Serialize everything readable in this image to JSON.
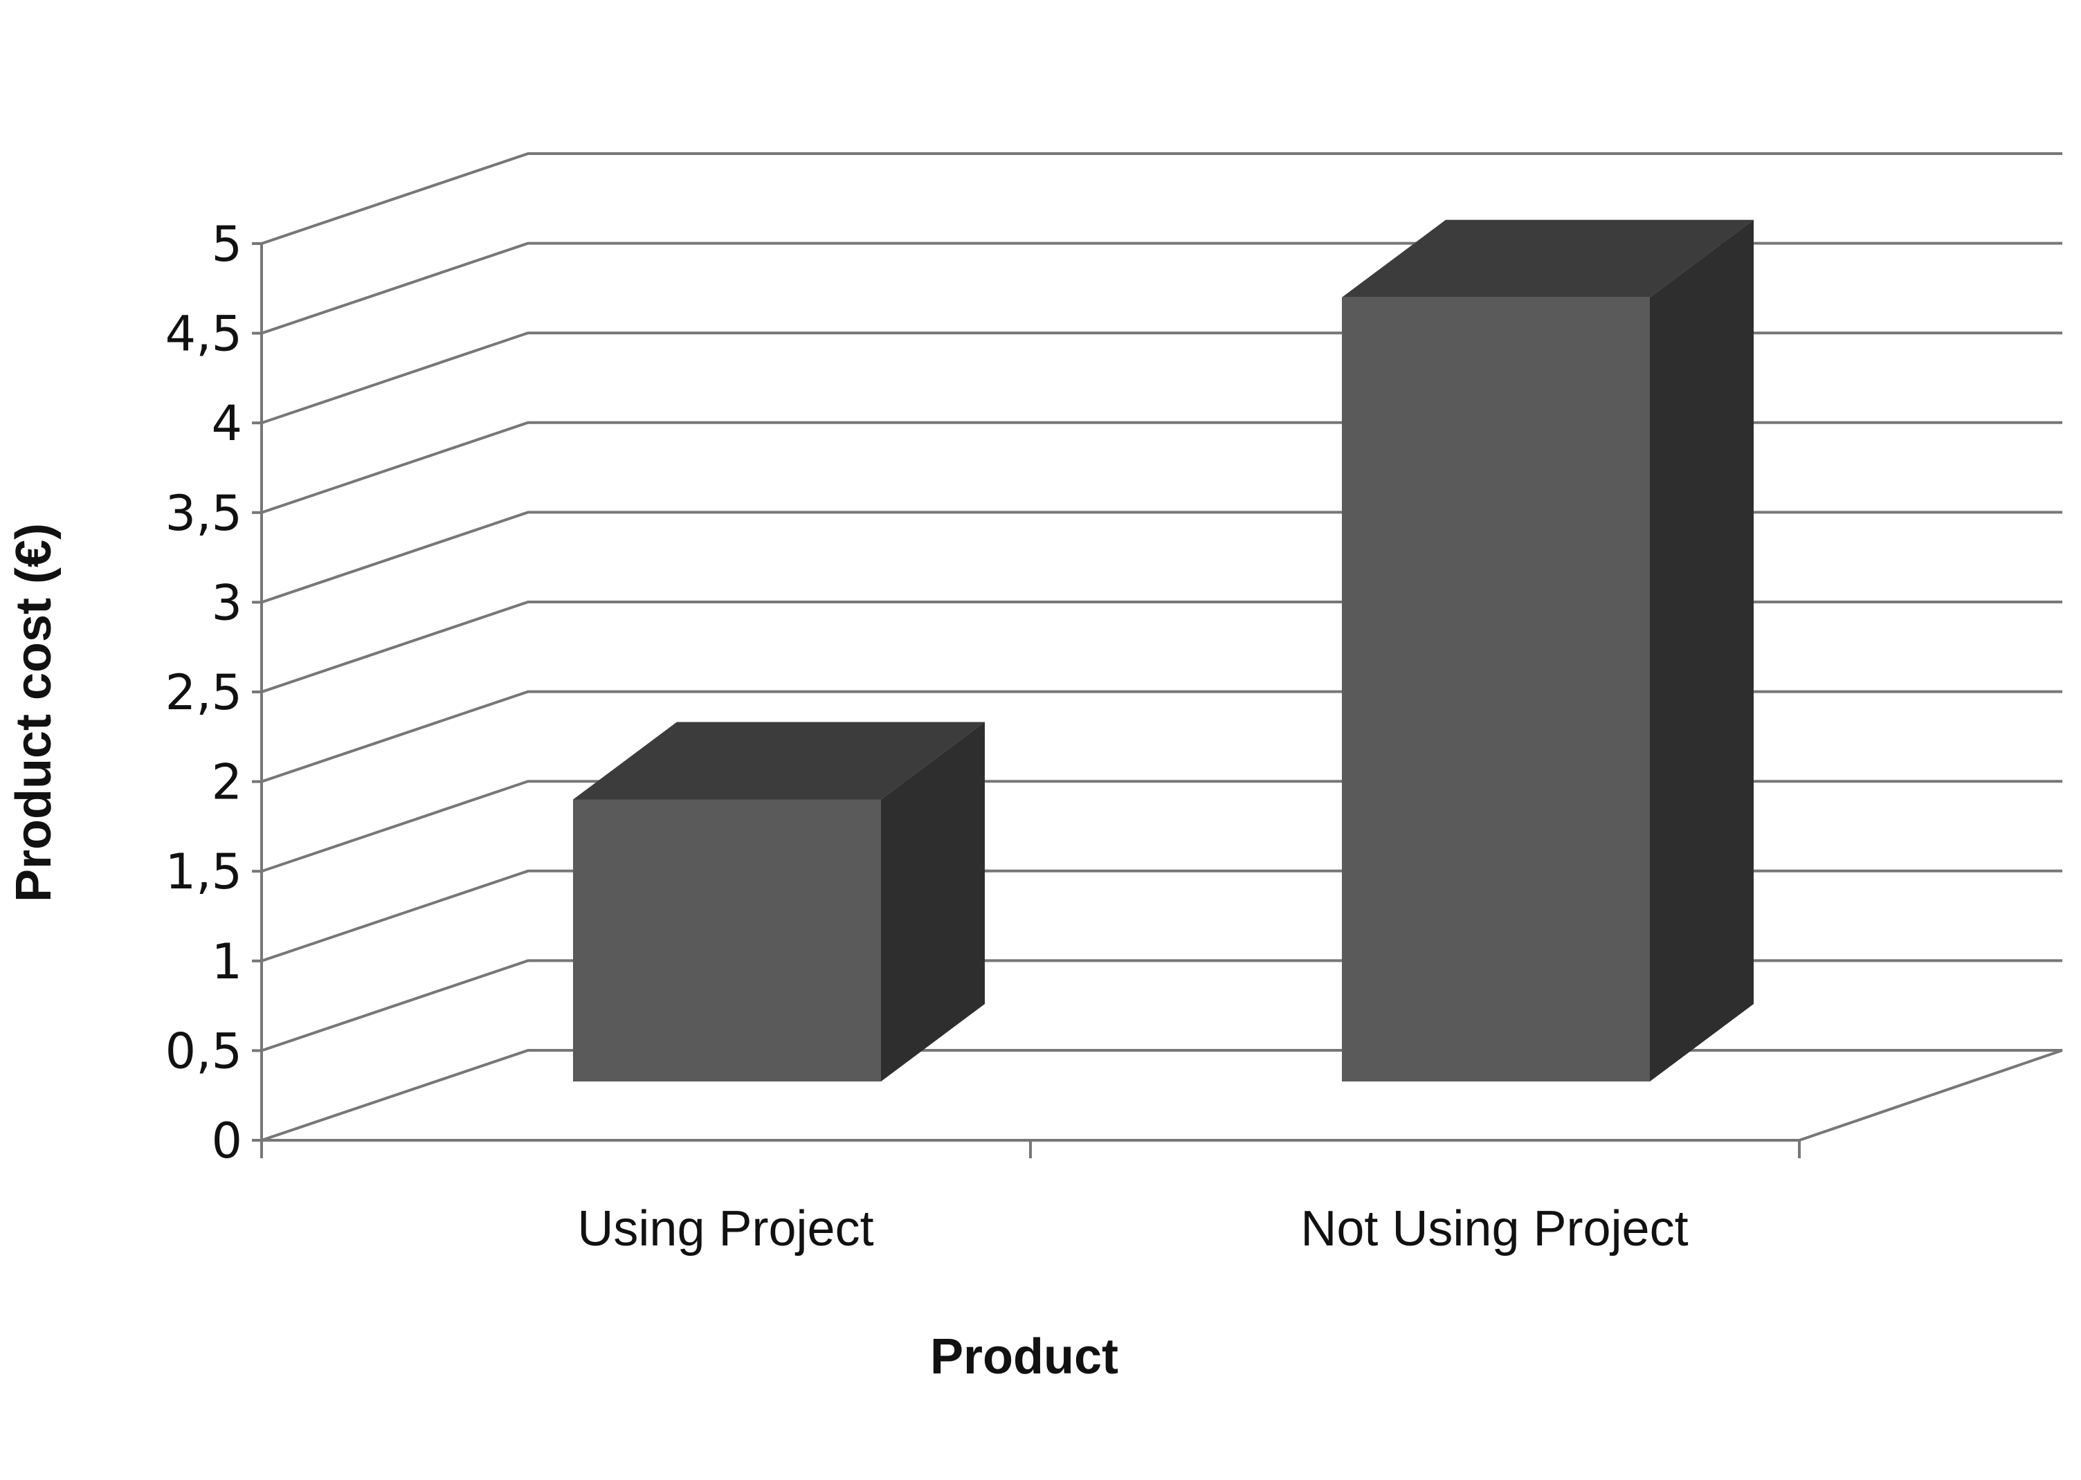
{
  "chart_data": {
    "type": "bar",
    "style": "3d-column",
    "categories": [
      "Using Project",
      "Not Using Project"
    ],
    "values": [
      1.9,
      4.7
    ],
    "title": "",
    "xlabel": "Product",
    "ylabel": "Product cost (€)",
    "ylim": [
      0,
      5
    ],
    "ytick_step": 0.5,
    "yticks": [
      "0",
      "0,5",
      "1",
      "1,5",
      "2",
      "2,5",
      "3",
      "3,5",
      "4",
      "4,5",
      "5"
    ],
    "grid": true,
    "legend": "none",
    "colors": {
      "bar_front": "#5a5a5a",
      "bar_top": "#3c3c3c",
      "bar_side": "#2e2e2e",
      "grid": "#777777"
    }
  }
}
